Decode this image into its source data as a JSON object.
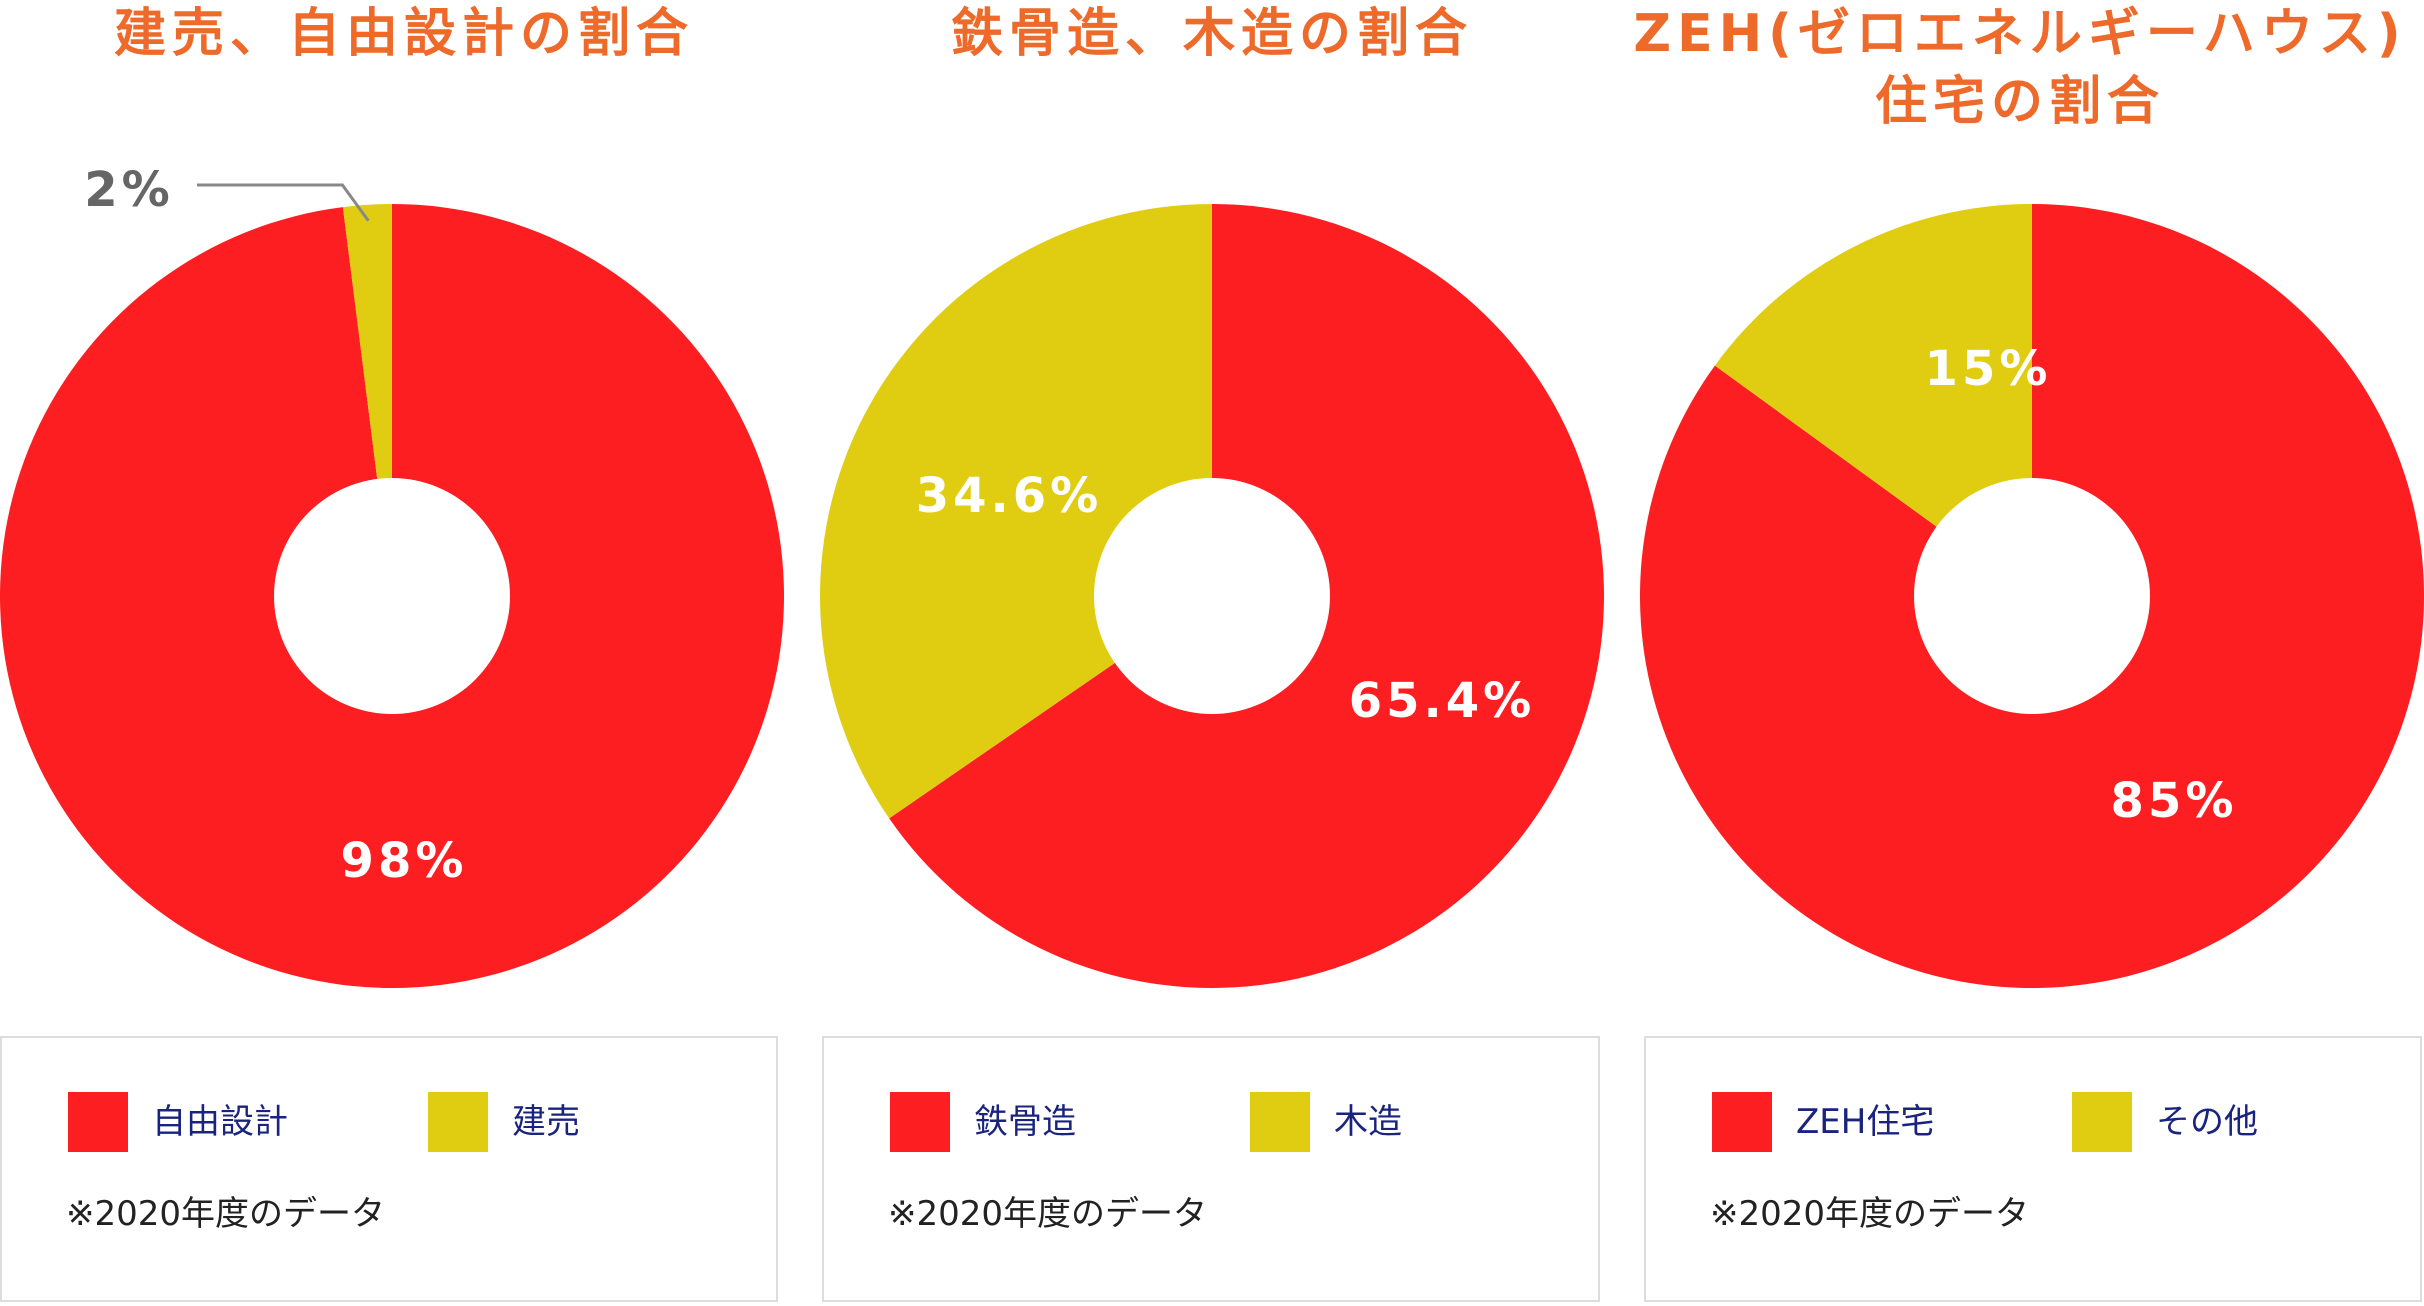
{
  "colors": {
    "title": "#ee6a2b",
    "red": "#fc1e21",
    "yellow": "#e0cd12",
    "legend_text": "#1a237e"
  },
  "chart_data": [
    {
      "type": "pie",
      "title": "建売、自由設計の割合",
      "slices": [
        {
          "label": "自由設計",
          "value": 98,
          "value_label": "98%",
          "color": "#fc1e21"
        },
        {
          "label": "建売",
          "value": 2,
          "value_label": "2%",
          "color": "#e0cd12"
        }
      ],
      "legend": [
        "自由設計",
        "建売"
      ],
      "note": "※2020年度のデータ"
    },
    {
      "type": "pie",
      "title": "鉄骨造、木造の割合",
      "slices": [
        {
          "label": "鉄骨造",
          "value": 65.4,
          "value_label": "65.4%",
          "color": "#fc1e21"
        },
        {
          "label": "木造",
          "value": 34.6,
          "value_label": "34.6%",
          "color": "#e0cd12"
        }
      ],
      "legend": [
        "鉄骨造",
        "木造"
      ],
      "note": "※2020年度のデータ"
    },
    {
      "type": "pie",
      "title": "ZEH(ゼロエネルギーハウス)\n住宅の割合",
      "slices": [
        {
          "label": "ZEH住宅",
          "value": 85,
          "value_label": "85%",
          "color": "#fc1e21"
        },
        {
          "label": "その他",
          "value": 15,
          "value_label": "15%",
          "color": "#e0cd12"
        }
      ],
      "legend": [
        "ZEH住宅",
        "その他"
      ],
      "note": "※2020年度のデータ"
    }
  ]
}
